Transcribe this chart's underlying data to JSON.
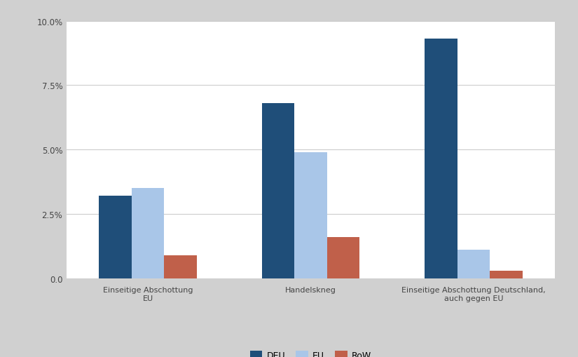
{
  "groups": [
    "Einseitige Abschottung\nEU",
    "Handelskneg",
    "Einseitige Abschottung Deutschland,\nauch gegen EU"
  ],
  "series": {
    "DEU": [
      3.2,
      6.8,
      9.3
    ],
    "EU": [
      3.5,
      4.9,
      1.1
    ],
    "RoW": [
      0.9,
      1.6,
      0.3
    ]
  },
  "colors": {
    "DEU": "#1f4e79",
    "EU": "#a9c6e8",
    "RoW": "#c0604a"
  },
  "ylim": [
    0,
    10.0
  ],
  "yticks": [
    0.0,
    2.5,
    5.0,
    7.5,
    10.0
  ],
  "background_color": "#ffffff",
  "outer_background": "#d0d0d0",
  "legend_labels": [
    "DEU",
    "EU",
    "RoW"
  ],
  "bar_width": 0.2,
  "figsize": [
    8.25,
    5.1
  ],
  "dpi": 100
}
